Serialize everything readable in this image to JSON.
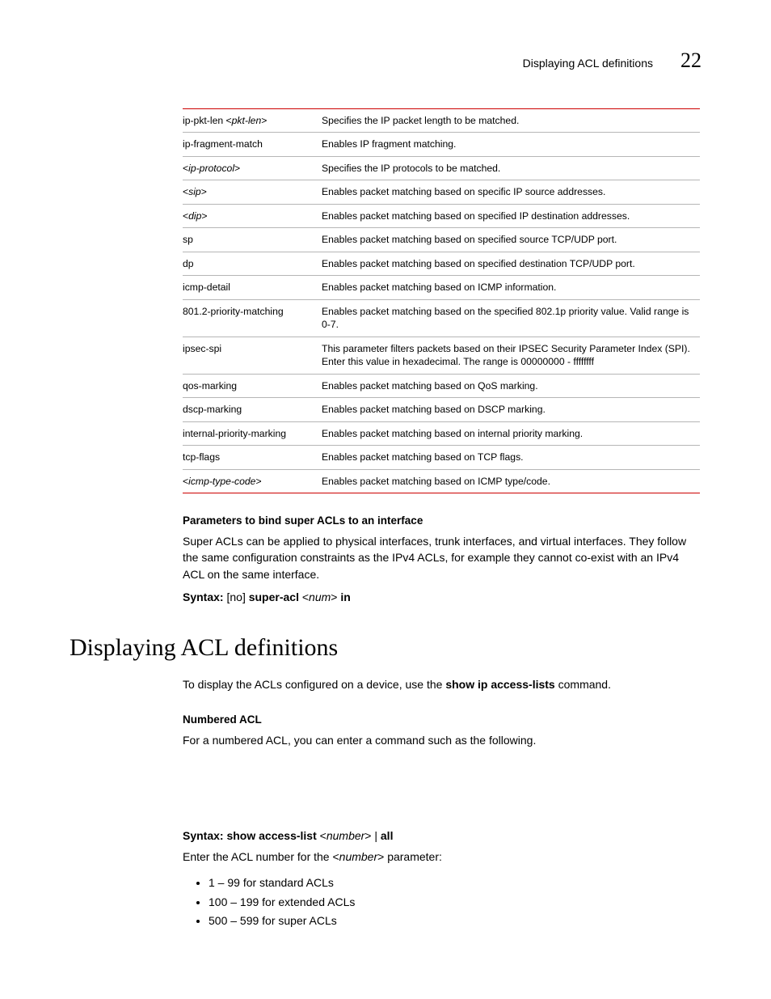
{
  "running_head": {
    "text": "Displaying ACL definitions",
    "chapter": "22"
  },
  "table": {
    "rows": [
      {
        "key_parts": [
          {
            "t": "ip-pkt-len <",
            "i": false
          },
          {
            "t": "pkt-len",
            "i": true
          },
          {
            "t": ">",
            "i": false
          }
        ],
        "desc": "Specifies the IP packet length to be matched."
      },
      {
        "key_parts": [
          {
            "t": "ip-fragment-match",
            "i": false
          }
        ],
        "desc": "Enables IP fragment matching."
      },
      {
        "key_parts": [
          {
            "t": "<",
            "i": false
          },
          {
            "t": "ip-protocol",
            "i": true
          },
          {
            "t": ">",
            "i": false
          }
        ],
        "desc": "Specifies the IP protocols to be matched."
      },
      {
        "key_parts": [
          {
            "t": "<",
            "i": false
          },
          {
            "t": "sip",
            "i": true
          },
          {
            "t": ">",
            "i": false
          }
        ],
        "desc": "Enables packet matching based on specific IP source addresses."
      },
      {
        "key_parts": [
          {
            "t": "<",
            "i": false
          },
          {
            "t": "dip",
            "i": true
          },
          {
            "t": ">",
            "i": false
          }
        ],
        "desc": "Enables packet matching based on specified IP destination addresses."
      },
      {
        "key_parts": [
          {
            "t": "sp",
            "i": false
          }
        ],
        "desc": "Enables packet matching based on specified source TCP/UDP port."
      },
      {
        "key_parts": [
          {
            "t": "dp",
            "i": false
          }
        ],
        "desc": "Enables packet matching based on specified destination TCP/UDP port."
      },
      {
        "key_parts": [
          {
            "t": "icmp-detail",
            "i": false
          }
        ],
        "desc": "Enables packet matching based on ICMP information."
      },
      {
        "key_parts": [
          {
            "t": "801.2-priority-matching",
            "i": false
          }
        ],
        "desc": "Enables packet matching based on the specified 802.1p priority value. Valid range is 0-7."
      },
      {
        "key_parts": [
          {
            "t": "ipsec-spi",
            "i": false
          }
        ],
        "desc": "This parameter filters packets based on their IPSEC Security Parameter Index (SPI). Enter this value in hexadecimal. The range is 00000000 - ffffffff"
      },
      {
        "key_parts": [
          {
            "t": "qos-marking",
            "i": false
          }
        ],
        "desc": "Enables packet matching based on QoS marking."
      },
      {
        "key_parts": [
          {
            "t": "dscp-marking",
            "i": false
          }
        ],
        "desc": "Enables packet matching based on DSCP marking."
      },
      {
        "key_parts": [
          {
            "t": "internal-priority-marking",
            "i": false
          }
        ],
        "desc": "Enables packet matching based on internal priority marking."
      },
      {
        "key_parts": [
          {
            "t": "tcp-flags",
            "i": false
          }
        ],
        "desc": "Enables packet matching based on TCP flags."
      },
      {
        "key_parts": [
          {
            "t": "<",
            "i": false
          },
          {
            "t": "icmp-type-code",
            "i": true
          },
          {
            "t": ">",
            "i": false
          }
        ],
        "desc": "Enables packet matching based on ICMP type/code."
      }
    ]
  },
  "bind_section": {
    "heading": "Parameters to bind super ACLs to an interface",
    "para": "Super ACLs can be applied to physical interfaces, trunk interfaces, and virtual interfaces. They follow the same configuration constraints as the IPv4 ACLs, for example they cannot co-exist with an IPv4 ACL on the same interface.",
    "syntax_label": "Syntax:",
    "syntax_parts": [
      {
        "t": "[",
        "b": false,
        "i": false
      },
      {
        "t": "no",
        "b": false,
        "i": false
      },
      {
        "t": "] ",
        "b": false,
        "i": false
      },
      {
        "t": "super-acl",
        "b": true,
        "i": false
      },
      {
        "t": " <",
        "b": false,
        "i": false
      },
      {
        "t": "num",
        "b": false,
        "i": true
      },
      {
        "t": "> ",
        "b": false,
        "i": false
      },
      {
        "t": "in",
        "b": true,
        "i": false
      }
    ]
  },
  "h1": "Displaying ACL definitions",
  "display_section": {
    "intro_pre": "To display the ACLs configured on a device, use the ",
    "intro_cmd": "show ip access-lists",
    "intro_post": " command.",
    "numbered_heading": "Numbered ACL",
    "numbered_para": "For a numbered ACL, you can enter a command such as the following.",
    "syntax_label": "Syntax:",
    "syntax_parts": [
      {
        "t": "show access-list",
        "b": true,
        "i": false
      },
      {
        "t": " <",
        "b": false,
        "i": false
      },
      {
        "t": "number",
        "b": false,
        "i": true
      },
      {
        "t": "> | ",
        "b": false,
        "i": false
      },
      {
        "t": "all",
        "b": true,
        "i": false
      }
    ],
    "enter_pre": "Enter the ACL number for the <",
    "enter_italic": "number",
    "enter_post": "> parameter:",
    "bullets": [
      "1 – 99 for standard ACLs",
      "100 – 199 for extended ACLs",
      "500 – 599 for super ACLs"
    ]
  }
}
